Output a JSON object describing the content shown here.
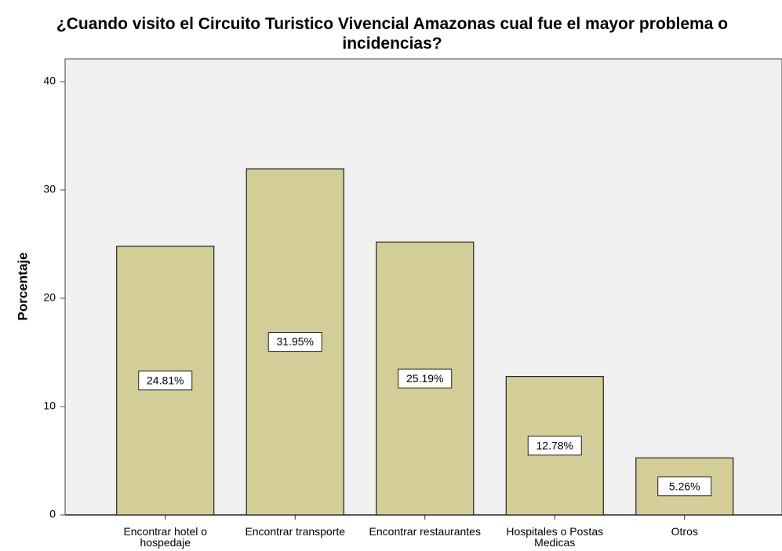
{
  "chart_data": {
    "type": "bar",
    "title": "¿Cuando visito el Circuito Turistico Vivencial Amazonas cual fue el mayor problema o incidencias?",
    "y_label": "Porcentaje",
    "categories": [
      "Encontrar hotel o hospedaje",
      "Encontrar transporte",
      "Encontrar restaurantes",
      "Hospitales o Postas Medicas",
      "Otros"
    ],
    "values": [
      24.81,
      31.95,
      25.19,
      12.78,
      5.26
    ],
    "value_labels": [
      "24.81%",
      "31.95%",
      "25.19%",
      "12.78%",
      "5.26%"
    ],
    "color": "#d3ce97",
    "ylim": [
      0,
      42.1
    ],
    "yticks": [
      0,
      10,
      20,
      30,
      40
    ],
    "grid": false
  }
}
